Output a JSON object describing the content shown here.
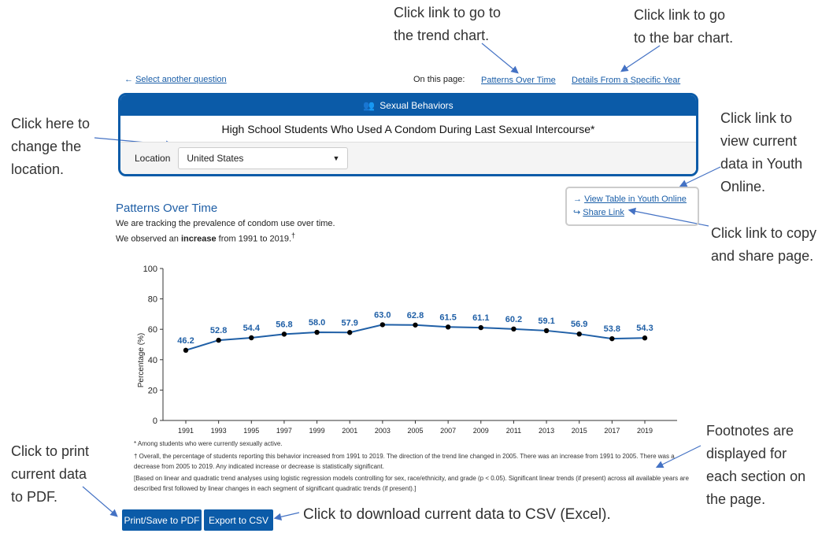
{
  "nav": {
    "back_link": "Select another question",
    "on_this_page": "On this page:",
    "links": [
      "Patterns Over Time",
      "Details From a Specific Year"
    ]
  },
  "panel": {
    "category": "Sexual Behaviors",
    "category_icon": "people-icon",
    "title": "High School Students Who Used A Condom During Last Sexual Intercourse*",
    "location_label": "Location",
    "location_value": "United States"
  },
  "side_links": {
    "view_table": "View Table in Youth Online",
    "share": "Share Link"
  },
  "section": {
    "title": "Patterns Over Time",
    "line1": "We are tracking the prevalence of condom use over time.",
    "line2_pre": "We observed an ",
    "line2_bold": "increase",
    "line2_post": " from 1991 to 2019.",
    "dagger": "†"
  },
  "chart_data": {
    "type": "line",
    "ylabel": "Percentage (%)",
    "ylim": [
      0,
      100
    ],
    "yticks": [
      0,
      20,
      40,
      60,
      80,
      100
    ],
    "x": [
      "1991",
      "1993",
      "1995",
      "1997",
      "1999",
      "2001",
      "2003",
      "2005",
      "2007",
      "2009",
      "2011",
      "2013",
      "2015",
      "2017",
      "2019"
    ],
    "values": [
      46.2,
      52.8,
      54.4,
      56.8,
      58.0,
      57.9,
      63.0,
      62.8,
      61.5,
      61.1,
      60.2,
      59.1,
      56.9,
      53.8,
      54.3
    ],
    "line_color": "#1f5fa6"
  },
  "footnotes": [
    "* Among students who were currently sexually active.",
    "† Overall, the percentage of students reporting this behavior increased from 1991 to 2019. The direction of the trend line changed in 2005. There was an increase from 1991 to 2005. There was a decrease from 2005 to 2019. Any indicated increase or decrease is statistically significant.",
    "[Based on linear and quadratic trend analyses using logistic regression models controlling for sex, race/ethnicity, and grade (p < 0.05). Significant linear trends (if present) across all available years are described first followed by linear changes in each segment of significant quadratic trends (if present).]"
  ],
  "buttons": {
    "print": "Print/Save to PDF",
    "export": "Export to CSV"
  },
  "annotations": {
    "trend": [
      "Click link to go to",
      "the trend chart."
    ],
    "bar": [
      "Click link to go",
      "to the bar chart."
    ],
    "location": [
      "Click here to",
      "change the",
      "location."
    ],
    "youth": [
      "Click link to",
      "view current",
      "data in Youth",
      "Online."
    ],
    "share": [
      "Click link to copy",
      "and share page."
    ],
    "footnotes": [
      "Footnotes are",
      "displayed for",
      "each section on",
      "the page."
    ],
    "print": [
      "Click to print",
      "current data",
      "to PDF."
    ],
    "csv": [
      "Click to download current data to CSV (Excel)."
    ]
  }
}
